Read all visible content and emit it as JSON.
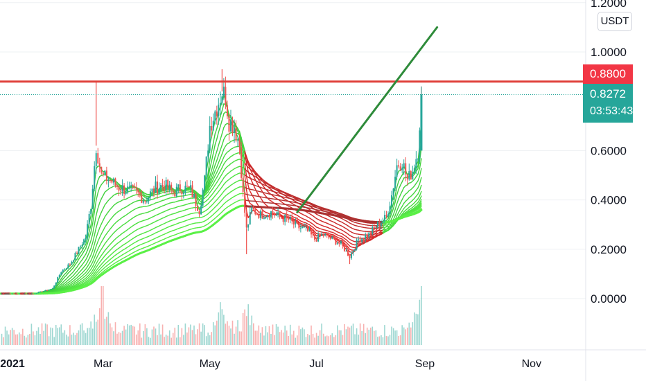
{
  "chart_data": {
    "type": "candlestick",
    "title": "",
    "unit": "USDT",
    "y_ticks": [
      "1.2000",
      "1.0000",
      "0.6000",
      "0.4000",
      "0.2000",
      "0.0000"
    ],
    "x_ticks": [
      "2021",
      "Mar",
      "May",
      "Jul",
      "Sep",
      "Nov"
    ],
    "ylim": [
      -0.05,
      1.22
    ],
    "x_start": "2021-01-01",
    "x_end": "2021-11-30",
    "resistance_level": {
      "value": 0.88,
      "label": "0.8800",
      "color": "#e0403a"
    },
    "last_price": {
      "value": 0.8272,
      "label": "0.8272",
      "countdown": "03:53:43",
      "color": "#26a69a"
    },
    "trend_line": {
      "start": [
        "2021-06-20",
        0.35
      ],
      "end": [
        "2021-09-08",
        1.1
      ],
      "color": "#2e8b3a"
    },
    "price_path": [
      [
        "2021-01-01",
        0.02
      ],
      [
        "2021-01-10",
        0.02
      ],
      [
        "2021-01-20",
        0.02
      ],
      [
        "2021-01-31",
        0.04
      ],
      [
        "2021-02-05",
        0.11
      ],
      [
        "2021-02-10",
        0.14
      ],
      [
        "2021-02-15",
        0.2
      ],
      [
        "2021-02-19",
        0.25
      ],
      [
        "2021-02-22",
        0.38
      ],
      [
        "2021-02-25",
        0.62
      ],
      [
        "2021-02-28",
        0.5
      ],
      [
        "2021-03-05",
        0.48
      ],
      [
        "2021-03-10",
        0.45
      ],
      [
        "2021-03-15",
        0.44
      ],
      [
        "2021-03-20",
        0.43
      ],
      [
        "2021-03-25",
        0.4
      ],
      [
        "2021-03-31",
        0.45
      ],
      [
        "2021-04-05",
        0.46
      ],
      [
        "2021-04-10",
        0.43
      ],
      [
        "2021-04-15",
        0.45
      ],
      [
        "2021-04-20",
        0.44
      ],
      [
        "2021-04-25",
        0.36
      ],
      [
        "2021-04-28",
        0.48
      ],
      [
        "2021-05-01",
        0.7
      ],
      [
        "2021-05-05",
        0.78
      ],
      [
        "2021-05-08",
        0.84
      ],
      [
        "2021-05-10",
        0.82
      ],
      [
        "2021-05-12",
        0.72
      ],
      [
        "2021-05-15",
        0.7
      ],
      [
        "2021-05-18",
        0.62
      ],
      [
        "2021-05-20",
        0.42
      ],
      [
        "2021-05-22",
        0.28
      ],
      [
        "2021-05-25",
        0.36
      ],
      [
        "2021-05-30",
        0.34
      ],
      [
        "2021-06-05",
        0.35
      ],
      [
        "2021-06-10",
        0.33
      ],
      [
        "2021-06-15",
        0.32
      ],
      [
        "2021-06-20",
        0.29
      ],
      [
        "2021-06-25",
        0.28
      ],
      [
        "2021-06-30",
        0.24
      ],
      [
        "2021-07-05",
        0.26
      ],
      [
        "2021-07-10",
        0.24
      ],
      [
        "2021-07-15",
        0.22
      ],
      [
        "2021-07-20",
        0.17
      ],
      [
        "2021-07-25",
        0.24
      ],
      [
        "2021-07-31",
        0.26
      ],
      [
        "2021-08-05",
        0.3
      ],
      [
        "2021-08-10",
        0.33
      ],
      [
        "2021-08-13",
        0.42
      ],
      [
        "2021-08-16",
        0.54
      ],
      [
        "2021-08-19",
        0.56
      ],
      [
        "2021-08-22",
        0.48
      ],
      [
        "2021-08-25",
        0.52
      ],
      [
        "2021-08-28",
        0.6
      ],
      [
        "2021-08-30",
        0.8272
      ]
    ],
    "spikes": [
      [
        "2021-02-25",
        0.88
      ],
      [
        "2021-05-08",
        0.93
      ],
      [
        "2021-05-22",
        0.18
      ],
      [
        "2021-07-20",
        0.14
      ],
      [
        "2021-08-30",
        0.86
      ]
    ],
    "ribbon": {
      "short_average_color": "#3ed13e",
      "long_average_color": "#44ee44",
      "bearish_color": "#e02020",
      "bands": 16
    },
    "volume": {
      "peaks": [
        [
          "2021-02-28",
          1.0
        ],
        [
          "2021-05-08",
          0.55
        ],
        [
          "2021-05-22",
          0.5
        ],
        [
          "2021-08-30",
          1.0
        ]
      ]
    }
  }
}
